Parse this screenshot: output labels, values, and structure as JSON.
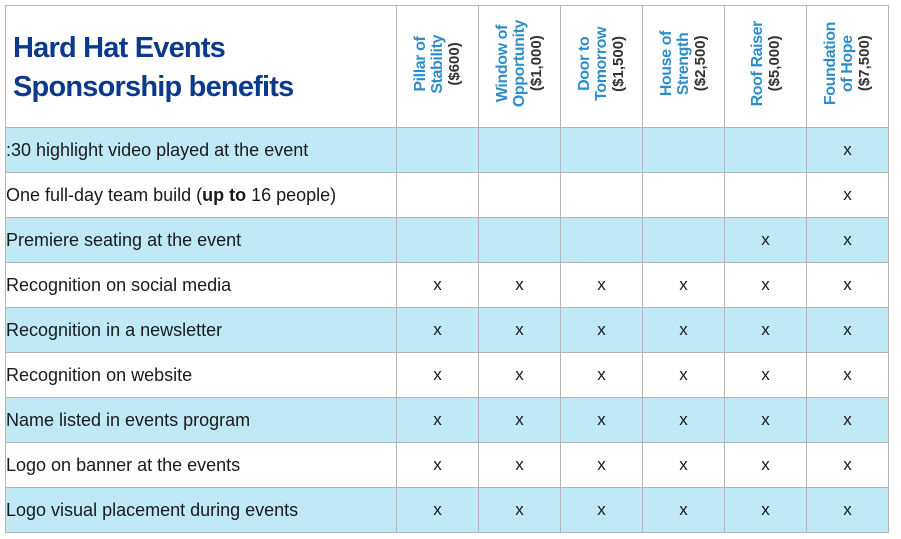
{
  "title": {
    "line1": "Hard Hat Events",
    "line2": "Sponsorship benefits"
  },
  "levels": [
    {
      "name_line1": "Pillar of",
      "name_line2": "Stability",
      "price": "($600)"
    },
    {
      "name_line1": "Window of",
      "name_line2": "Opportunity",
      "price": "($1,000)"
    },
    {
      "name_line1": "Door to",
      "name_line2": "Tomorrow",
      "price": "($1,500)"
    },
    {
      "name_line1": "House of",
      "name_line2": "Strength",
      "price": "($2,500)"
    },
    {
      "name_line1": "Roof Raiser",
      "name_line2": "",
      "price": "($5,000)"
    },
    {
      "name_line1": "Foundation",
      "name_line2": "of Hope",
      "price": "($7,500)"
    }
  ],
  "benefits": [
    {
      "label_pre": ":30 highlight video played at the event",
      "label_bold": "",
      "label_post": "",
      "marks": [
        "",
        "",
        "",
        "",
        "",
        "x"
      ]
    },
    {
      "label_pre": "One full-day team build (",
      "label_bold": "up to",
      "label_post": " 16 people)",
      "marks": [
        "",
        "",
        "",
        "",
        "",
        "x"
      ]
    },
    {
      "label_pre": "Premiere seating at the event",
      "label_bold": "",
      "label_post": "",
      "marks": [
        "",
        "",
        "",
        "",
        "x",
        "x"
      ]
    },
    {
      "label_pre": "Recognition on social media",
      "label_bold": "",
      "label_post": "",
      "marks": [
        "x",
        "x",
        "x",
        "x",
        "x",
        "x"
      ]
    },
    {
      "label_pre": "Recognition in a newsletter",
      "label_bold": "",
      "label_post": "",
      "marks": [
        "x",
        "x",
        "x",
        "x",
        "x",
        "x"
      ]
    },
    {
      "label_pre": "Recognition on website",
      "label_bold": "",
      "label_post": "",
      "marks": [
        "x",
        "x",
        "x",
        "x",
        "x",
        "x"
      ]
    },
    {
      "label_pre": "Name listed in events program",
      "label_bold": "",
      "label_post": "",
      "marks": [
        "x",
        "x",
        "x",
        "x",
        "x",
        "x"
      ]
    },
    {
      "label_pre": "Logo on banner at the events",
      "label_bold": "",
      "label_post": "",
      "marks": [
        "x",
        "x",
        "x",
        "x",
        "x",
        "x"
      ]
    },
    {
      "label_pre": "Logo visual placement during events",
      "label_bold": "",
      "label_post": "",
      "marks": [
        "x",
        "x",
        "x",
        "x",
        "x",
        "x"
      ]
    }
  ],
  "colors": {
    "title": "#0b3a8c",
    "level_name": "#2e8cc8",
    "band": "#bfe9f4",
    "grid": "#b5b5b5"
  }
}
